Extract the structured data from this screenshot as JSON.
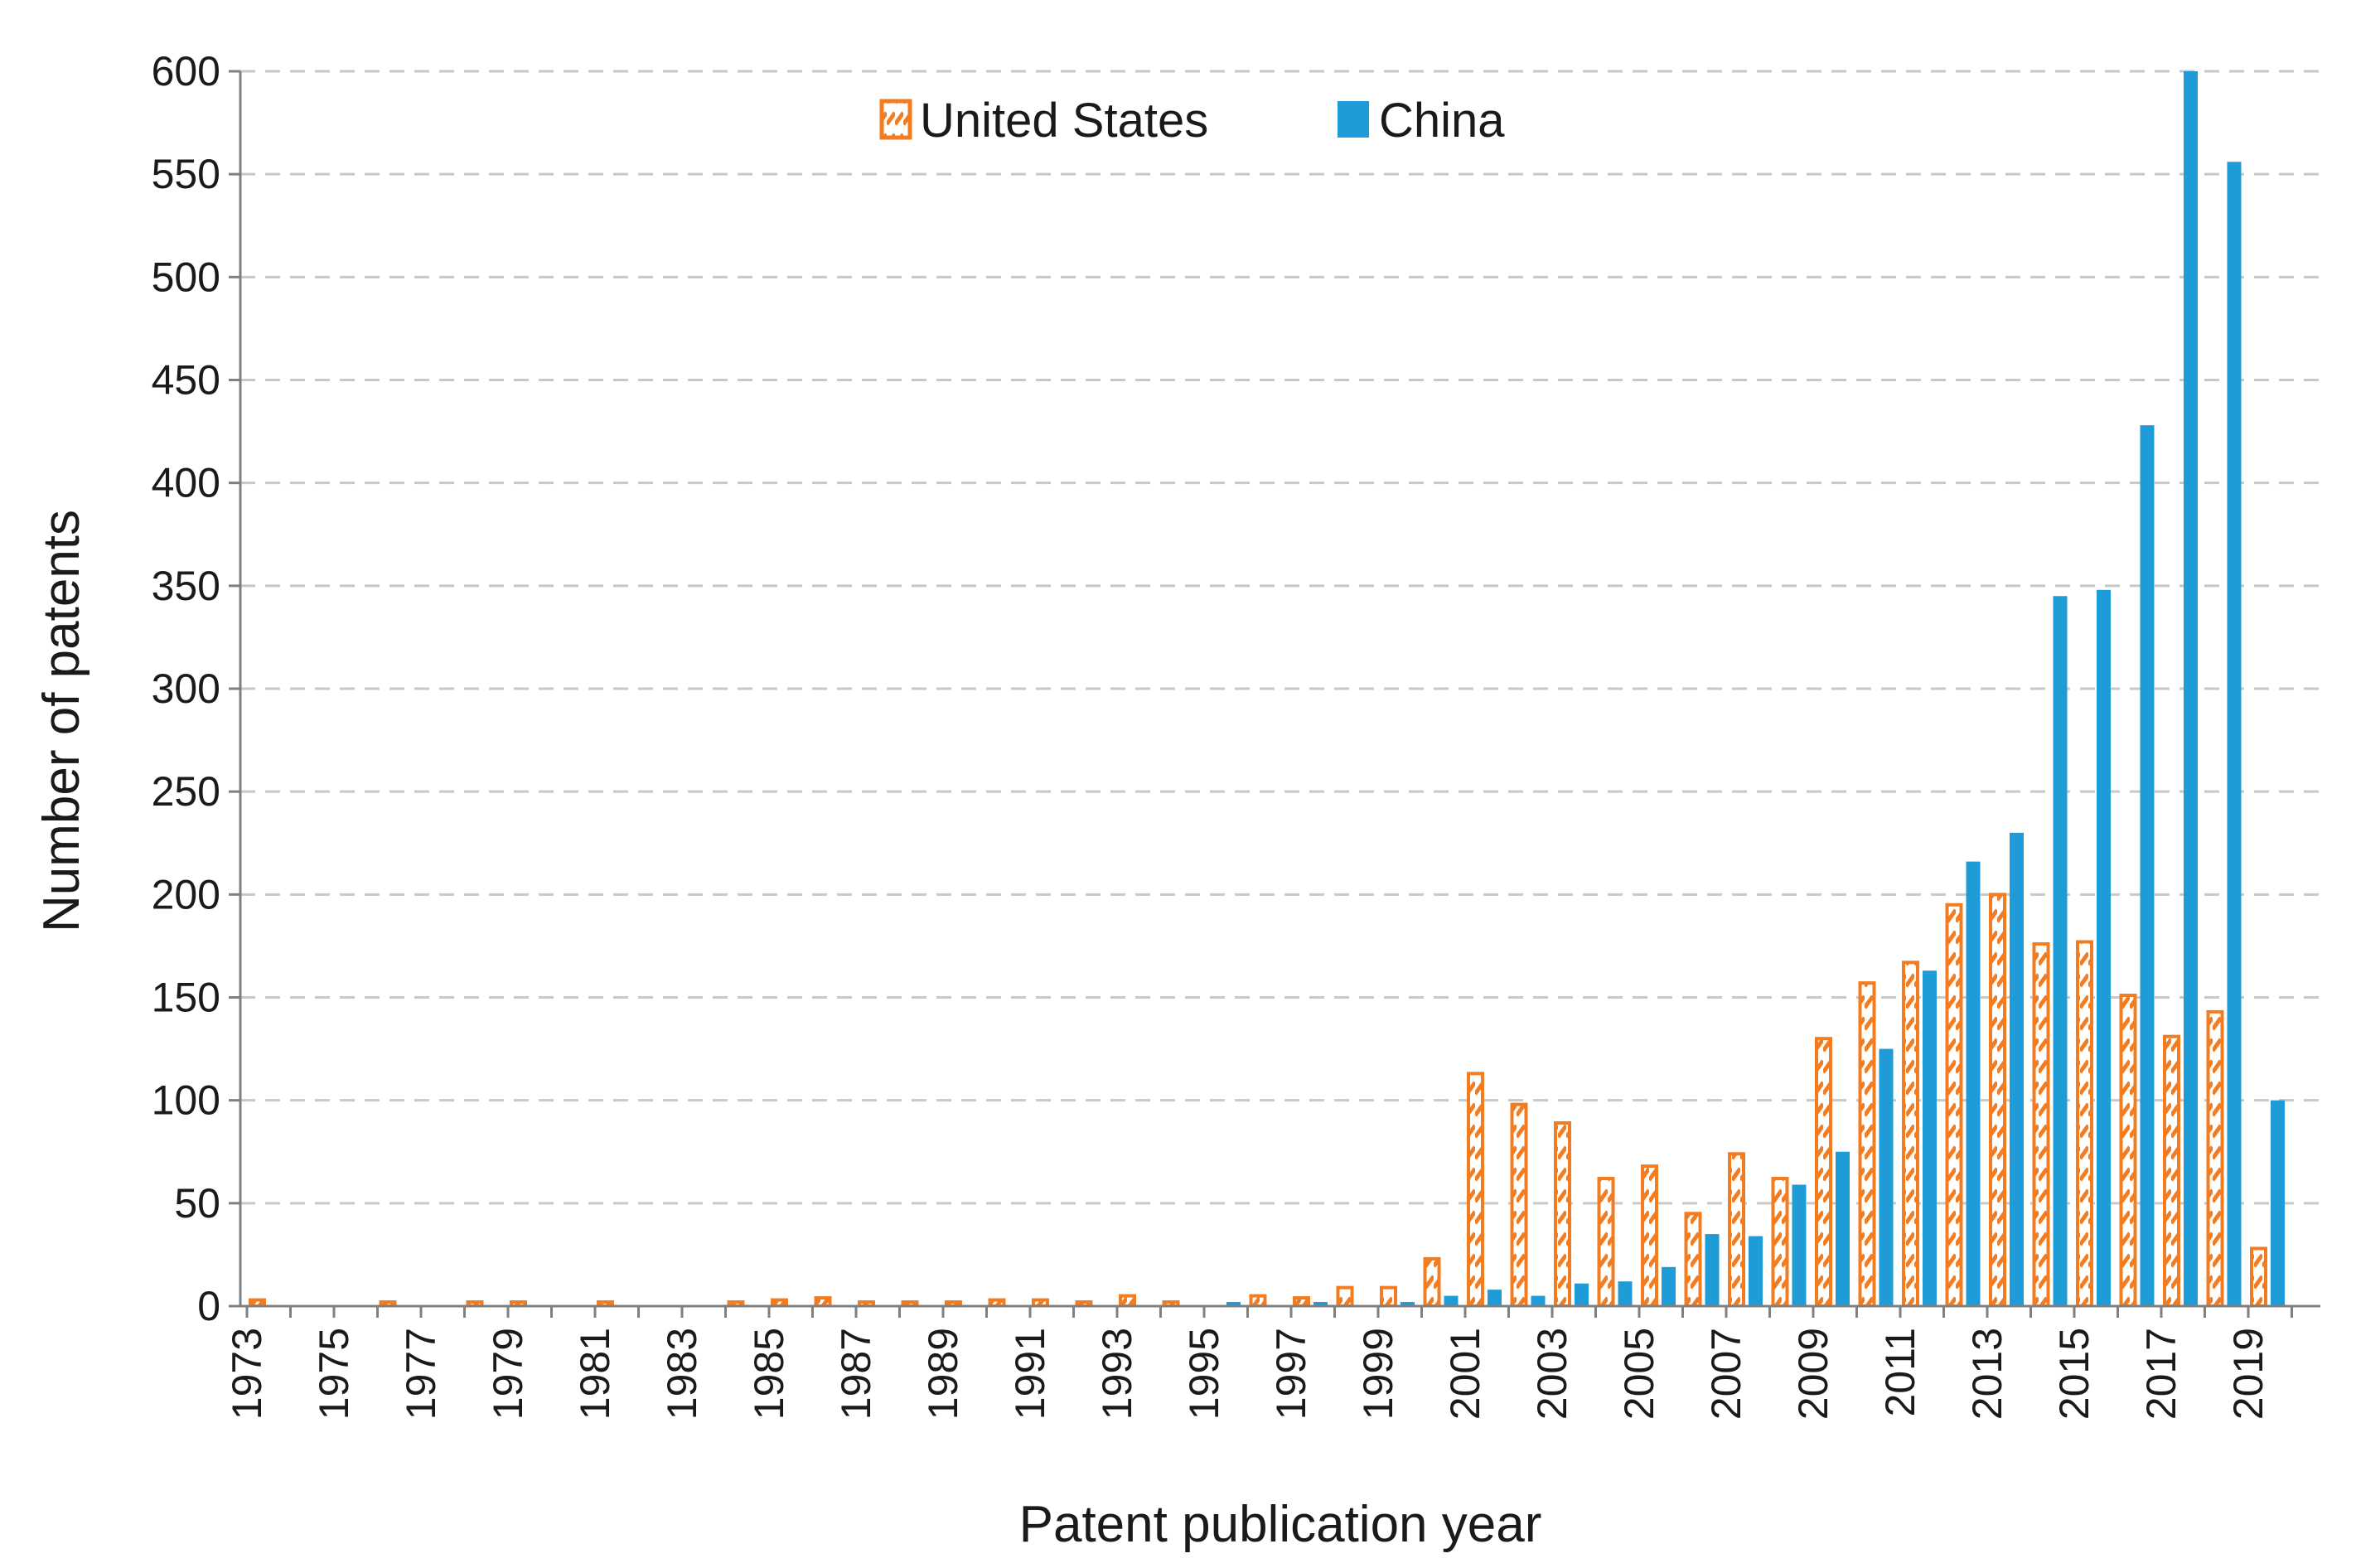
{
  "chart_data": {
    "type": "bar",
    "title": "",
    "xlabel": "Patent publication year",
    "ylabel": "Number of patents",
    "ylim": [
      0,
      600
    ],
    "yticks": [
      "0",
      "50",
      "100",
      "150",
      "200",
      "250",
      "300",
      "350",
      "400",
      "450",
      "500",
      "550",
      "600"
    ],
    "grid": true,
    "legend_position": "top-center",
    "x_tick_labels": [
      "1973",
      "1975",
      "1977",
      "1979",
      "1981",
      "1983",
      "1985",
      "1987",
      "1989",
      "1991",
      "1993",
      "1995",
      "1997",
      "1999",
      "2001",
      "2003",
      "2005",
      "2007",
      "2009",
      "2011",
      "2013",
      "2015",
      "2017",
      "2019"
    ],
    "categories": [
      "1973",
      "1974",
      "1975",
      "1976",
      "1977",
      "1978",
      "1979",
      "1980",
      "1981",
      "1982",
      "1983",
      "1984",
      "1985",
      "1986",
      "1987",
      "1988",
      "1989",
      "1990",
      "1991",
      "1992",
      "1993",
      "1994",
      "1995",
      "1996",
      "1997",
      "1998",
      "1999",
      "2000",
      "2001",
      "2002",
      "2003",
      "2004",
      "2005",
      "2006",
      "2007",
      "2008",
      "2009",
      "2010",
      "2011",
      "2012",
      "2013",
      "2014",
      "2015",
      "2016",
      "2017",
      "2018",
      "2019",
      "2020"
    ],
    "series": [
      {
        "name": "United States",
        "color": "#F47C20",
        "pattern": "hatched",
        "values": [
          3,
          0,
          0,
          2,
          0,
          2,
          2,
          0,
          2,
          0,
          0,
          2,
          3,
          4,
          2,
          2,
          2,
          3,
          3,
          2,
          5,
          2,
          0,
          5,
          4,
          9,
          9,
          23,
          113,
          98,
          89,
          62,
          68,
          45,
          74,
          62,
          130,
          157,
          167,
          195,
          200,
          176,
          177,
          151,
          131,
          143,
          28,
          0
        ]
      },
      {
        "name": "China",
        "color": "#1F9BD7",
        "pattern": "solid",
        "values": [
          0,
          0,
          0,
          0,
          0,
          0,
          0,
          0,
          0,
          0,
          0,
          0,
          0,
          0,
          0,
          0,
          0,
          0,
          0,
          0,
          0,
          0,
          2,
          0,
          2,
          0,
          2,
          5,
          8,
          5,
          11,
          12,
          19,
          35,
          34,
          59,
          75,
          125,
          163,
          216,
          230,
          345,
          348,
          428,
          600,
          556,
          100,
          0
        ]
      }
    ]
  }
}
